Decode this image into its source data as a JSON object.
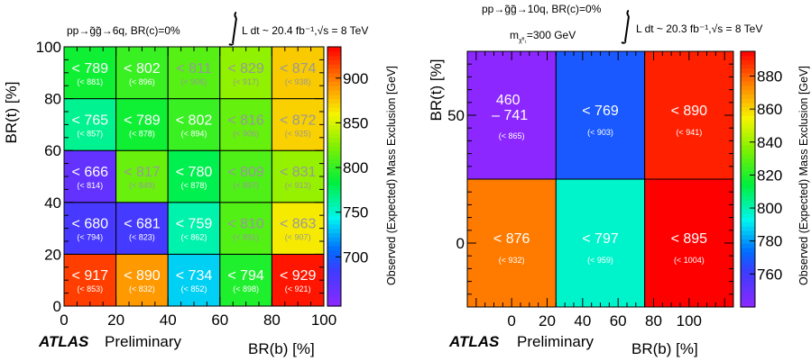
{
  "chart_data": [
    {
      "type": "heatmap",
      "process": "pp→g̃g̃→6q, BR(c)=0%",
      "lumi": "L dt ~ 20.4 fb⁻¹,√s = 8 TeV",
      "xlabel": "BR(b) [%]",
      "ylabel": "BR(t) [%]",
      "zlabel": "Observed (Expected) Mass Exclusion [GeV]",
      "branding": {
        "atlas": "ATLAS",
        "status": "Preliminary"
      },
      "x_bins": [
        0,
        20,
        40,
        60,
        80,
        100
      ],
      "y_bins": [
        0,
        20,
        40,
        60,
        80,
        100
      ],
      "x_ticks": [
        "0",
        "20",
        "40",
        "60",
        "80",
        "100"
      ],
      "y_ticks": [
        "0",
        "20",
        "40",
        "60",
        "80",
        "100"
      ],
      "zlim": [
        645,
        935
      ],
      "z_ticks": [
        "700",
        "750",
        "800",
        "850",
        "900"
      ],
      "cells": [
        {
          "row": 0,
          "col": 0,
          "observed": "< 917",
          "expected": "(< 853)",
          "z": 917
        },
        {
          "row": 0,
          "col": 1,
          "observed": "< 890",
          "expected": "(< 832)",
          "z": 890
        },
        {
          "row": 0,
          "col": 2,
          "observed": "< 734",
          "expected": "(< 852)",
          "z": 734
        },
        {
          "row": 0,
          "col": 3,
          "observed": "< 794",
          "expected": "(< 898)",
          "z": 794
        },
        {
          "row": 0,
          "col": 4,
          "observed": "< 929",
          "expected": "(< 921)",
          "z": 929
        },
        {
          "row": 1,
          "col": 0,
          "observed": "< 680",
          "expected": "(< 794)",
          "z": 680
        },
        {
          "row": 1,
          "col": 1,
          "observed": "< 681",
          "expected": "(< 823)",
          "z": 681
        },
        {
          "row": 1,
          "col": 2,
          "observed": "< 759",
          "expected": "(< 862)",
          "z": 759
        },
        {
          "row": 1,
          "col": 3,
          "observed": "< 810",
          "expected": "(< 891)",
          "z": 810
        },
        {
          "row": 1,
          "col": 4,
          "observed": "< 863",
          "expected": "(< 907)",
          "z": 863
        },
        {
          "row": 2,
          "col": 0,
          "observed": "< 666",
          "expected": "(< 814)",
          "z": 666
        },
        {
          "row": 2,
          "col": 1,
          "observed": "< 817",
          "expected": "(< 849)",
          "z": 817
        },
        {
          "row": 2,
          "col": 2,
          "observed": "< 780",
          "expected": "(< 878)",
          "z": 780
        },
        {
          "row": 2,
          "col": 3,
          "observed": "< 809",
          "expected": "(< 897)",
          "z": 809
        },
        {
          "row": 2,
          "col": 4,
          "observed": "< 831",
          "expected": "(< 913)",
          "z": 831
        },
        {
          "row": 3,
          "col": 0,
          "observed": "< 765",
          "expected": "(< 857)",
          "z": 765
        },
        {
          "row": 3,
          "col": 1,
          "observed": "< 789",
          "expected": "(< 878)",
          "z": 789
        },
        {
          "row": 3,
          "col": 2,
          "observed": "< 802",
          "expected": "(< 894)",
          "z": 802
        },
        {
          "row": 3,
          "col": 3,
          "observed": "< 816",
          "expected": "(< 906)",
          "z": 816
        },
        {
          "row": 3,
          "col": 4,
          "observed": "< 872",
          "expected": "(< 925)",
          "z": 872
        },
        {
          "row": 4,
          "col": 0,
          "observed": "< 789",
          "expected": "(< 881)",
          "z": 789
        },
        {
          "row": 4,
          "col": 1,
          "observed": "< 802",
          "expected": "(< 896)",
          "z": 802
        },
        {
          "row": 4,
          "col": 2,
          "observed": "< 811",
          "expected": "(< 906)",
          "z": 811
        },
        {
          "row": 4,
          "col": 3,
          "observed": "< 829",
          "expected": "(< 917)",
          "z": 829
        },
        {
          "row": 4,
          "col": 4,
          "observed": "< 874",
          "expected": "(< 938)",
          "z": 874
        }
      ]
    },
    {
      "type": "heatmap",
      "process": "pp→g̃g̃→10q, BR(c)=0%",
      "mass_label": "m",
      "mass_sub": "χ̃⁰₁",
      "mass_value": "=300 GeV",
      "lumi": "L dt ~ 20.3 fb⁻¹,√s = 8 TeV",
      "xlabel": "BR(b) [%]",
      "ylabel": "BR(t) [%]",
      "zlabel": "Observed (Expected) Mass Exclusion [GeV]",
      "branding": {
        "atlas": "ATLAS",
        "status": "Preliminary"
      },
      "x_bins": [
        -25,
        25,
        75,
        125
      ],
      "y_bins": [
        -25,
        25,
        75
      ],
      "x_ticks": [
        "0",
        "20",
        "40",
        "60",
        "80",
        "100"
      ],
      "y_ticks": [
        "0",
        "50"
      ],
      "zlim": [
        740,
        895
      ],
      "z_ticks": [
        "760",
        "780",
        "800",
        "820",
        "840",
        "860",
        "880"
      ],
      "cells": [
        {
          "row": 0,
          "col": 0,
          "observed": "< 876",
          "expected": "(< 932)",
          "z": 876
        },
        {
          "row": 0,
          "col": 1,
          "observed": "< 797",
          "expected": "(< 959)",
          "z": 797
        },
        {
          "row": 0,
          "col": 2,
          "observed": "< 895",
          "expected": "(< 1004)",
          "z": 895
        },
        {
          "row": 1,
          "col": 0,
          "observed": "460",
          "observed2": "– 741",
          "expected": "(< 865)",
          "z": 740
        },
        {
          "row": 1,
          "col": 1,
          "observed": "< 769",
          "expected": "(< 903)",
          "z": 769
        },
        {
          "row": 1,
          "col": 2,
          "observed": "< 890",
          "expected": "(< 941)",
          "z": 890
        }
      ]
    }
  ]
}
